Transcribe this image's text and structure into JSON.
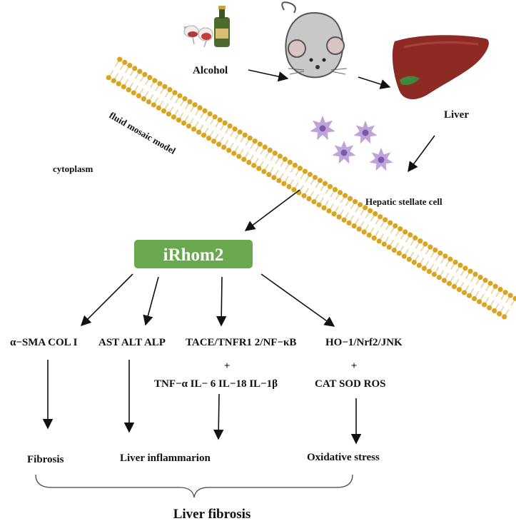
{
  "top": {
    "alcohol": "Alcohol",
    "liver": "Liver",
    "membrane_label": "fluid mosaic model",
    "cytoplasm": "cytoplasm",
    "stellate": "Hepatic stellate cell"
  },
  "center_box": "iRhom2",
  "markers": {
    "col1": "α−SMA COL I",
    "col2": "AST ALT ALP",
    "col3": "TACE/TNFR1 2/NF−κB",
    "col4": "HO−1/Nrf2/JNK"
  },
  "plus": {
    "p3": "+",
    "p4": "+"
  },
  "secondary": {
    "col3": "TNF−α IL− 6 IL−18 IL−1β",
    "col4": "CAT SOD ROS"
  },
  "outcomes": {
    "fibrosis": "Fibrosis",
    "inflammation": "Liver inflammarion",
    "oxidative": "Oxidative stress"
  },
  "conclusion": "Liver fibrosis",
  "colors": {
    "box_fill": "#6aa84f",
    "membrane_head": "#d9a521",
    "membrane_tail": "#e8d49a",
    "liver": "#8e2a24",
    "cell": "#b79ad6"
  }
}
